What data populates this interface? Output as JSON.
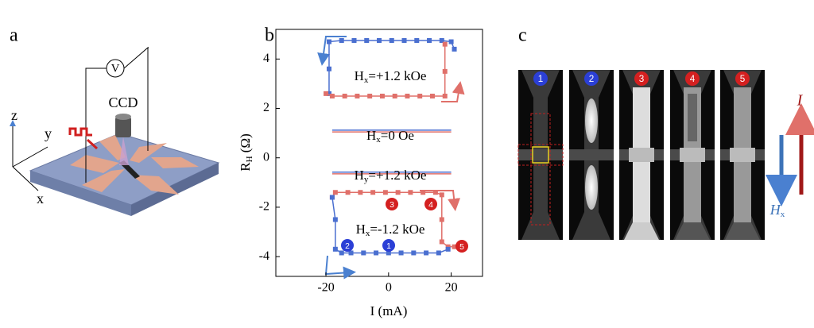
{
  "panel_a": {
    "label": "a",
    "voltmeter": "V",
    "camera": "CCD",
    "axes": [
      "z",
      "y",
      "x"
    ]
  },
  "chart_data": {
    "type": "line",
    "label": "b",
    "xlabel": "I (mA)",
    "ylabel": {
      "main": "R",
      "sub": "H",
      "tail": " (Ω)"
    },
    "xlim": [
      -36,
      30
    ],
    "ylim": [
      -4.8,
      5.2
    ],
    "xticks": [
      -20,
      0,
      20
    ],
    "yticks": [
      -4,
      -2,
      0,
      2,
      4
    ],
    "series": [
      {
        "color": "#4a6fd0",
        "x": [
          -19,
          -19,
          -19,
          -15,
          -11,
          -7,
          -3,
          1,
          5,
          9,
          13,
          17,
          20,
          21
        ],
        "values": [
          2.6,
          3.6,
          4.7,
          4.75,
          4.75,
          4.75,
          4.75,
          4.75,
          4.75,
          4.75,
          4.75,
          4.75,
          4.7,
          4.4
        ]
      },
      {
        "color": "#e0706a",
        "x": [
          18,
          18,
          18,
          14,
          10,
          6,
          2,
          -2,
          -6,
          -10,
          -14,
          -18,
          -20
        ],
        "values": [
          4.6,
          3.5,
          2.5,
          2.5,
          2.5,
          2.5,
          2.5,
          2.5,
          2.5,
          2.5,
          2.5,
          2.5,
          2.6
        ]
      },
      {
        "color": "#4a6fd0",
        "x": [
          -18,
          20
        ],
        "values": [
          1.12,
          1.12
        ]
      },
      {
        "color": "#e0706a",
        "x": [
          -18,
          20
        ],
        "values": [
          1.05,
          1.05
        ]
      },
      {
        "color": "#4a6fd0",
        "x": [
          -18,
          20
        ],
        "values": [
          -0.58,
          -0.58
        ]
      },
      {
        "color": "#e0706a",
        "x": [
          -18,
          20
        ],
        "values": [
          -0.65,
          -0.65
        ]
      },
      {
        "color": "#e0706a",
        "x": [
          -18,
          -17,
          -13,
          -9,
          -5,
          -1,
          3,
          7,
          11,
          15,
          17,
          17,
          17,
          19,
          21
        ],
        "values": [
          -1.6,
          -1.4,
          -1.4,
          -1.4,
          -1.4,
          -1.4,
          -1.4,
          -1.4,
          -1.4,
          -1.4,
          -1.5,
          -2.5,
          -3.4,
          -3.6,
          -3.6
        ]
      },
      {
        "color": "#4a6fd0",
        "x": [
          19,
          16,
          12,
          8,
          4,
          0,
          -4,
          -8,
          -12,
          -15,
          -17,
          -17,
          -18
        ],
        "values": [
          -3.7,
          -3.85,
          -3.85,
          -3.85,
          -3.85,
          -3.85,
          -3.85,
          -3.85,
          -3.85,
          -3.85,
          -3.7,
          -2.5,
          -1.6
        ]
      }
    ],
    "annotations": [
      {
        "main": "H",
        "sub": "x",
        "tail": "=+1.2 kOe"
      },
      {
        "main": "H",
        "sub": "x",
        "tail": "=0 Oe"
      },
      {
        "main": "H",
        "sub": "y",
        "tail": "=+1.2 kOe"
      },
      {
        "main": "H",
        "sub": "x",
        "tail": "=-1.2 kOe"
      }
    ],
    "markers": [
      {
        "label": "1",
        "color": "#2b3fd6"
      },
      {
        "label": "2",
        "color": "#2b3fd6"
      },
      {
        "label": "3",
        "color": "#d42020"
      },
      {
        "label": "4",
        "color": "#d42020"
      },
      {
        "label": "5",
        "color": "#d42020"
      }
    ]
  },
  "panel_c": {
    "label": "c",
    "frames": [
      {
        "label": "1",
        "color": "#2b3fd6"
      },
      {
        "label": "2",
        "color": "#2b3fd6"
      },
      {
        "label": "3",
        "color": "#d42020"
      },
      {
        "label": "4",
        "color": "#d42020"
      },
      {
        "label": "5",
        "color": "#d42020"
      }
    ],
    "current": "I",
    "field": {
      "main": "H",
      "sub": "x"
    }
  }
}
